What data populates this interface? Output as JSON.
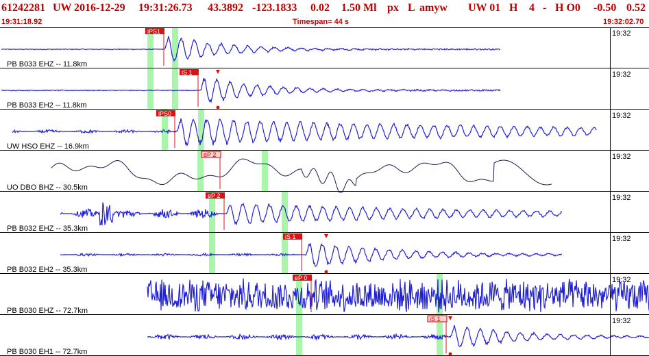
{
  "header": {
    "event_id": "61242281",
    "network": "UW",
    "date": "2016-12-29",
    "time": "19:31:26.73",
    "lat": "43.3892",
    "lon": "-123.1833",
    "depth": "0.02",
    "magnitude": "1.50 Ml",
    "type": "px",
    "status": "L",
    "analyst": "amyw",
    "source": "UW 01",
    "quality": "H",
    "count": "4",
    "dash": "-",
    "hq": "H O0",
    "v1": "-0.50",
    "v2": "0.52"
  },
  "subheader": {
    "start_time": "19:31:18.92",
    "timespan": "Timespan=  44 s",
    "end_time": "19:32:02.70"
  },
  "traces": [
    {
      "label": "PB B033 EHZ -- 11.8km",
      "time": "19:32",
      "picks": [
        {
          "label": "iPS1",
          "style": "red"
        }
      ]
    },
    {
      "label": "PB B033 EH2 -- 11.8km",
      "time": "19:32",
      "picks": [
        {
          "label": "iS 1",
          "style": "red"
        }
      ]
    },
    {
      "label": "UW HSO EHZ -- 16.9km",
      "time": "19:32",
      "picks": [
        {
          "label": "iPS0",
          "style": "red"
        }
      ]
    },
    {
      "label": "UO DBO BHZ -- 30.5km",
      "time": "19:32",
      "picks": [
        {
          "label": "eP 2",
          "style": "pink"
        }
      ]
    },
    {
      "label": "PB B032 EHZ -- 35.3km",
      "time": "19:32",
      "picks": [
        {
          "label": "eP 2",
          "style": "red"
        }
      ]
    },
    {
      "label": "PB B032 EH2 -- 35.3km",
      "time": "19:32",
      "picks": [
        {
          "label": "iS 1",
          "style": "red"
        }
      ]
    },
    {
      "label": "PB B030 EHZ -- 72.7km",
      "time": "19:32",
      "picks": [
        {
          "label": "eP 0",
          "style": "red"
        }
      ]
    },
    {
      "label": "PB B030 EH1 -- 72.7km",
      "time": "19:32",
      "picks": [
        {
          "label": "iS 1",
          "style": "pink"
        }
      ]
    }
  ],
  "colors": {
    "header": "#c00000",
    "trace_blue": "#1f1fd8",
    "trace_dark": "#1a1a4a",
    "pick_red": "#dd1111",
    "green_window": "#a9f5a9"
  }
}
